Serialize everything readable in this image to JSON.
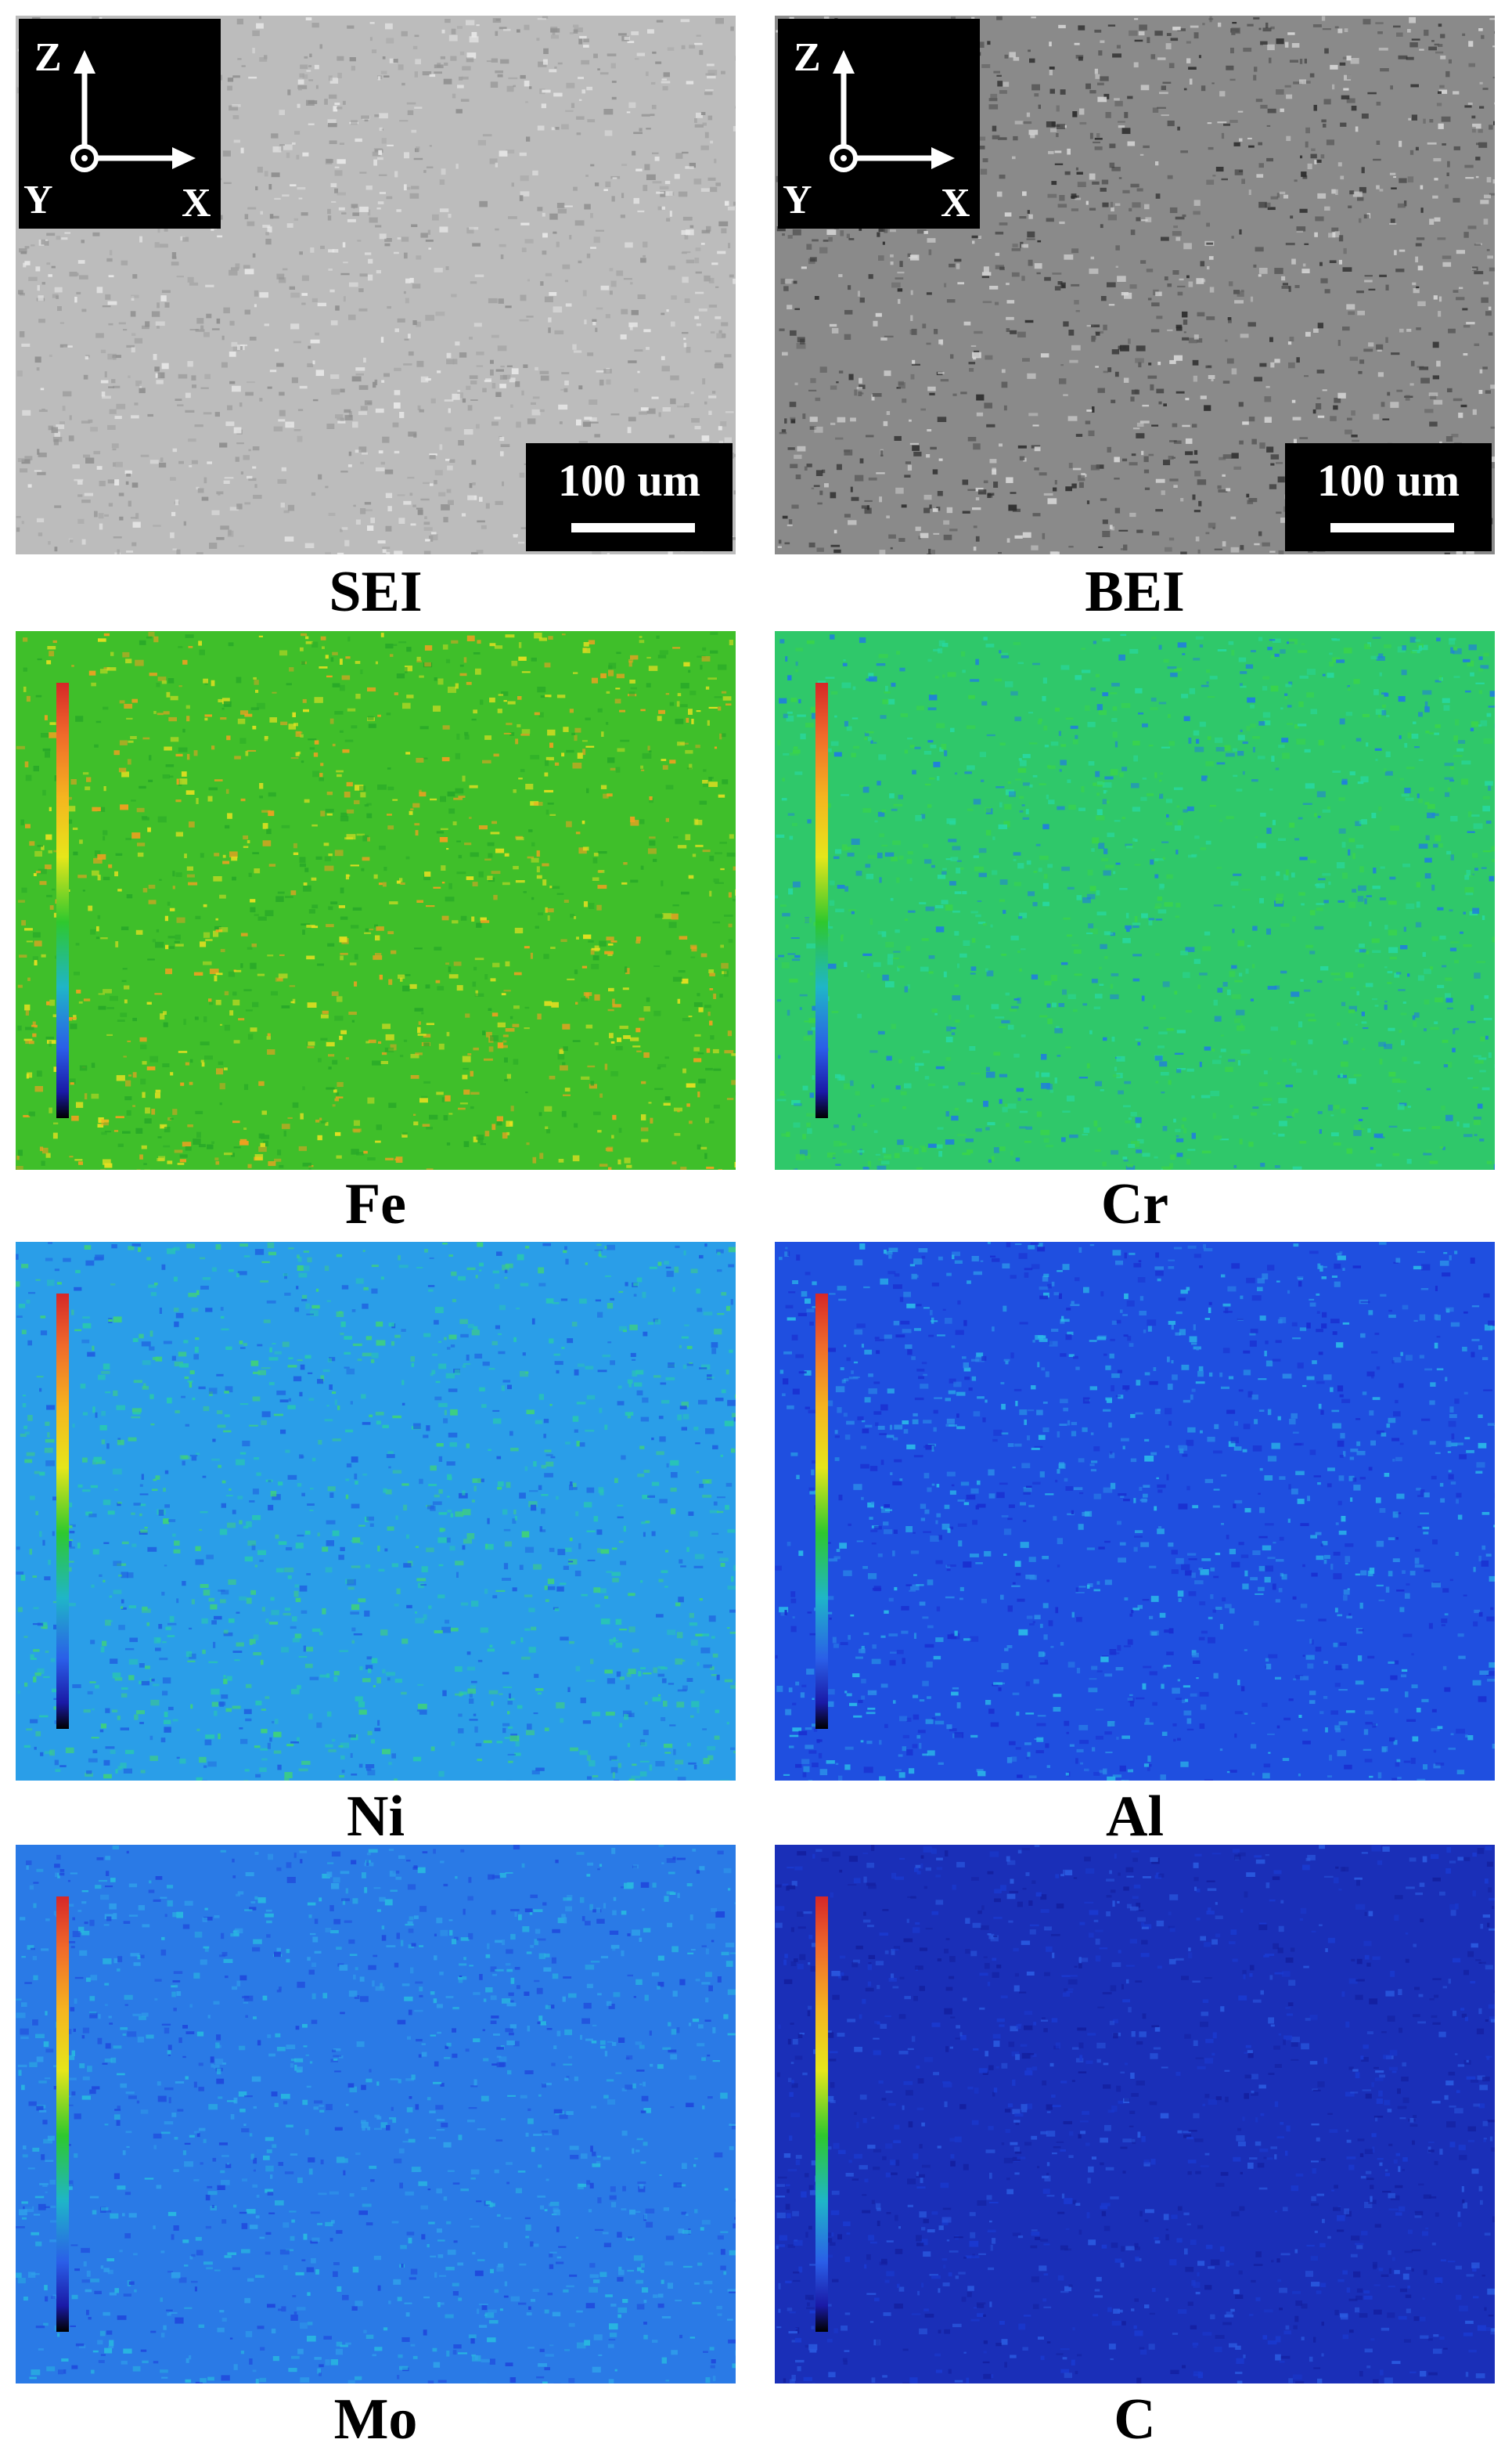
{
  "figure": {
    "panels": [
      {
        "id": "sei",
        "label": "SEI",
        "type": "sem",
        "base_color": "#bcbcbc",
        "speck_colors": [
          "#8e8e8e",
          "#e8e8e8",
          "#a2a2a2"
        ],
        "show_axes": true,
        "show_scale": true,
        "show_colorbar": false
      },
      {
        "id": "bei",
        "label": "BEI",
        "type": "sem",
        "base_color": "#8a8a8a",
        "speck_colors": [
          "#2e2e2e",
          "#d6d6d6",
          "#5a5a5a"
        ],
        "show_axes": true,
        "show_scale": true,
        "show_colorbar": false
      },
      {
        "id": "fe",
        "label": "Fe",
        "type": "map",
        "base_color": "#3fbf2a",
        "speck_colors": [
          "#e8e020",
          "#f0a020",
          "#28a828"
        ],
        "show_axes": false,
        "show_scale": false,
        "show_colorbar": true
      },
      {
        "id": "cr",
        "label": "Cr",
        "type": "map",
        "base_color": "#2fc86a",
        "speck_colors": [
          "#1f7de0",
          "#28d8a0",
          "#3ad44a"
        ],
        "show_axes": false,
        "show_scale": false,
        "show_colorbar": true
      },
      {
        "id": "ni",
        "label": "Ni",
        "type": "map",
        "base_color": "#2a9ee8",
        "speck_colors": [
          "#1f5fe0",
          "#28c8b0",
          "#3fd27a"
        ],
        "show_axes": false,
        "show_scale": false,
        "show_colorbar": true
      },
      {
        "id": "al",
        "label": "Al",
        "type": "map",
        "base_color": "#1f4fe0",
        "speck_colors": [
          "#1a2fd0",
          "#2a8ae8",
          "#2ab8e8"
        ],
        "show_axes": false,
        "show_scale": false,
        "show_colorbar": true
      },
      {
        "id": "mo",
        "label": "Mo",
        "type": "map",
        "base_color": "#2a7ae6",
        "speck_colors": [
          "#1f48dc",
          "#28b8e0",
          "#2fa0ea"
        ],
        "show_axes": false,
        "show_scale": false,
        "show_colorbar": true
      },
      {
        "id": "c",
        "label": "C",
        "type": "map",
        "base_color": "#1a2fb8",
        "speck_colors": [
          "#1420a0",
          "#2a5ae0",
          "#1a3ad0"
        ],
        "show_axes": false,
        "show_scale": false,
        "show_colorbar": true
      }
    ],
    "axes": {
      "z": "Z",
      "y": "Y",
      "x": "X"
    },
    "scale_bar": {
      "text": "100 um"
    }
  }
}
